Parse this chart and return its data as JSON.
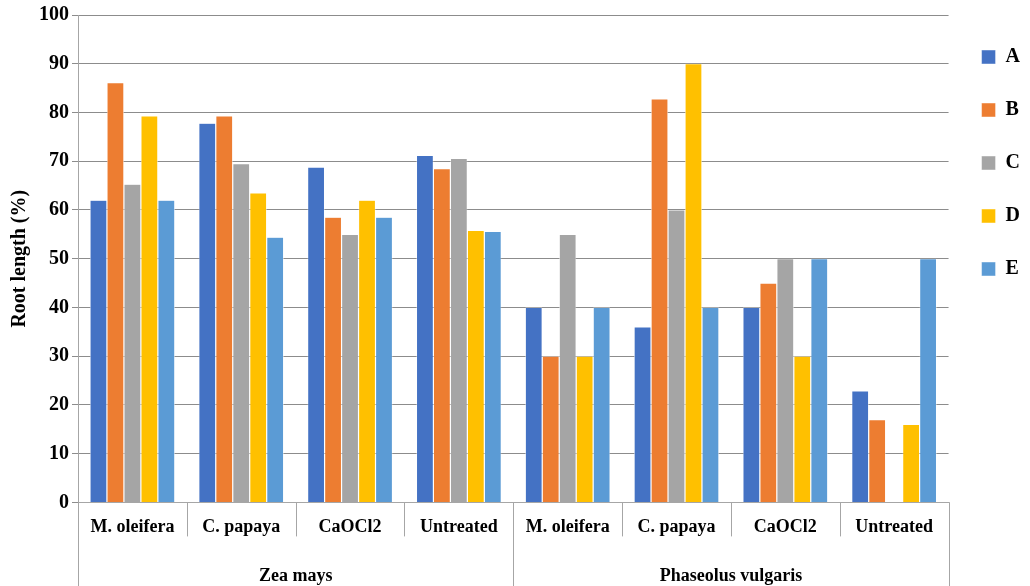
{
  "chart_data": {
    "type": "bar",
    "ylabel": "Root length (%)",
    "categories": [
      "M. oleifera",
      "C. papaya",
      "CaOCl2",
      "Untreated",
      "M. oleifera",
      "C. papaya",
      "CaOCl2",
      "Untreated"
    ],
    "series": [
      {
        "name": "A",
        "color": "#4472c4",
        "values": [
          62,
          77.8,
          68.8,
          71.2,
          40,
          36,
          40,
          22.9
        ]
      },
      {
        "name": "B",
        "color": "#ed7d31",
        "values": [
          86.1,
          79.3,
          58.5,
          68.5,
          30,
          82.8,
          45,
          17
        ]
      },
      {
        "name": "C",
        "color": "#a5a5a5",
        "values": [
          65.3,
          69.5,
          55,
          70.6,
          55,
          60,
          50,
          0
        ]
      },
      {
        "name": "D",
        "color": "#ffc000",
        "values": [
          79.3,
          63.5,
          62,
          55.8,
          30,
          90,
          30,
          16
        ]
      },
      {
        "name": "E",
        "color": "#5b9bd5",
        "values": [
          62,
          54.4,
          58.5,
          55.6,
          40,
          40,
          50,
          50
        ]
      }
    ],
    "annotations": [
      "Zea mays",
      "Phaseolus vulgaris"
    ],
    "ylim": [
      0,
      100
    ],
    "yticks": [
      0,
      10,
      20,
      30,
      40,
      50,
      60,
      70,
      80,
      90,
      100
    ],
    "grid": "y",
    "legend": "right"
  }
}
